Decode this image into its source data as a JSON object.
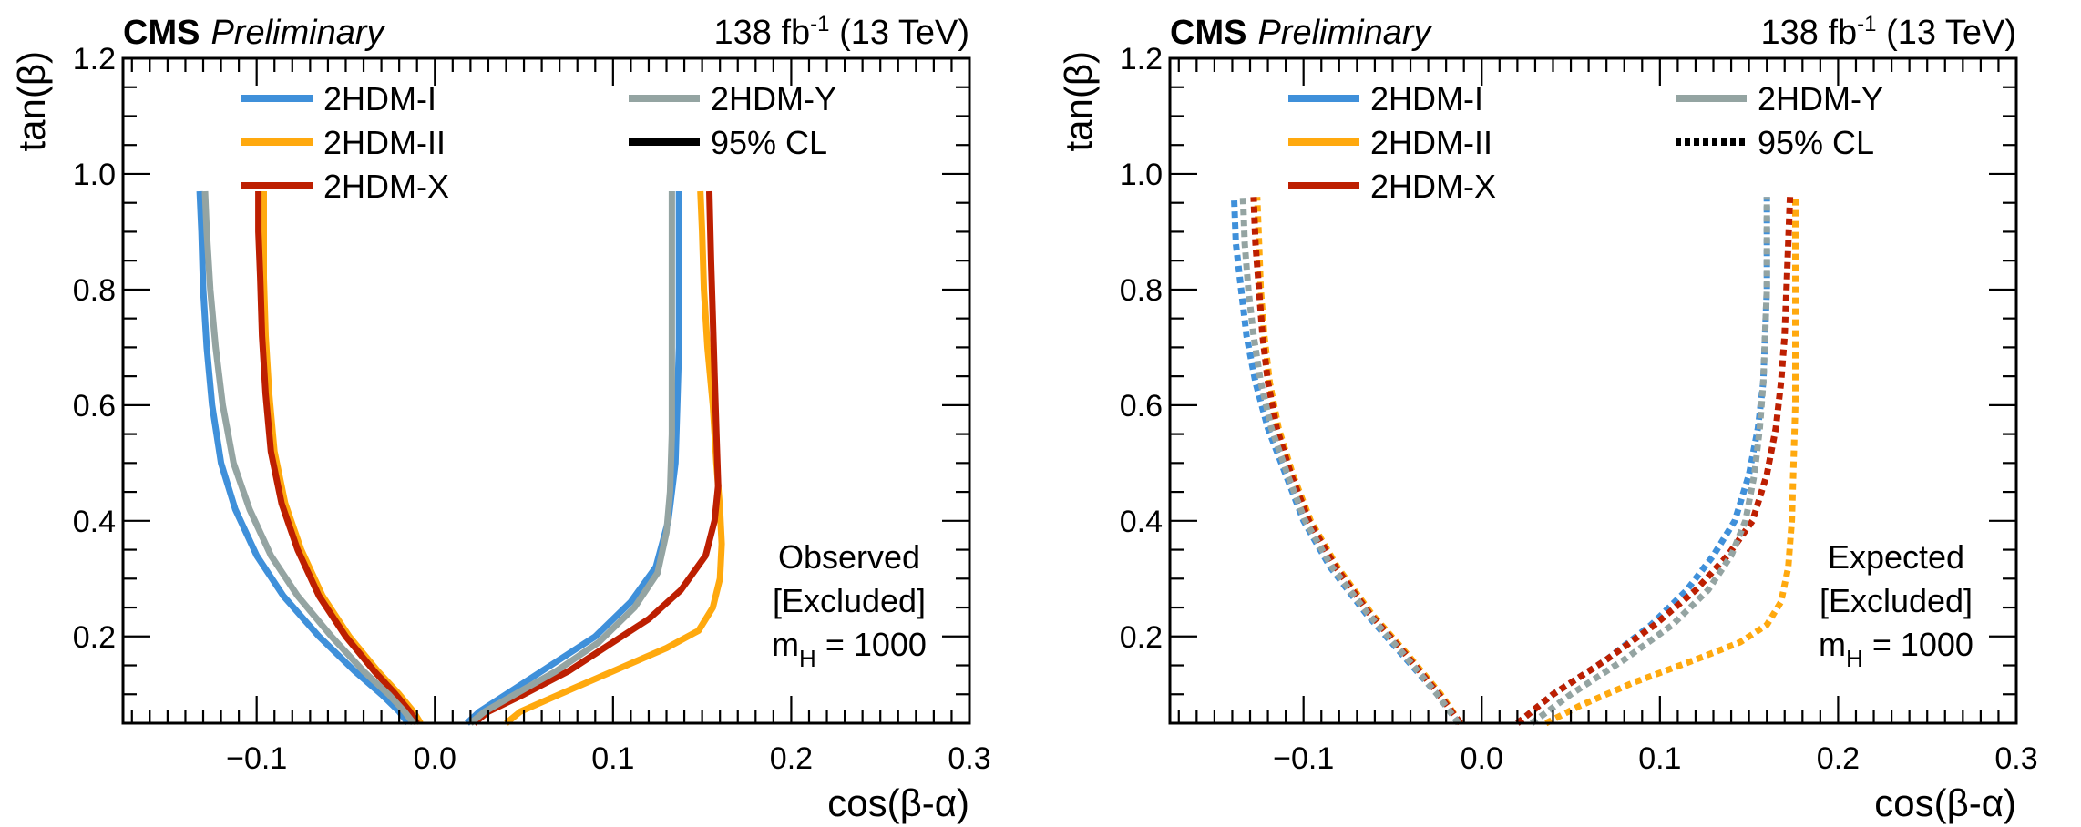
{
  "chart_data": [
    {
      "type": "line",
      "panel": "observed",
      "header": {
        "experiment": "CMS",
        "status": "Preliminary",
        "lumi": "138 fb",
        "lumi_sup": "-1",
        "energy": " (13 TeV)"
      },
      "xlabel": "cos(β-α)",
      "ylabel": "tan(β)",
      "xlim": [
        -0.175,
        0.3
      ],
      "ylim": [
        0.05,
        1.2
      ],
      "xticks": [
        -0.1,
        0.0,
        0.1,
        0.2,
        0.3
      ],
      "xtick_labels": [
        "−0.1",
        "0.0",
        "0.1",
        "0.2",
        "0.3"
      ],
      "yticks": [
        0.2,
        0.4,
        0.6,
        0.8,
        1.0,
        1.2
      ],
      "ytick_labels": [
        "0.2",
        "0.4",
        "0.6",
        "0.8",
        "1.0",
        "1.2"
      ],
      "x_minor_step": 0.01,
      "y_minor_step": 0.05,
      "grid": false,
      "line_style": "solid",
      "legend_position": "top",
      "legend": [
        {
          "label": "2HDM-I",
          "color": "#3f90da",
          "style": "solid"
        },
        {
          "label": "2HDM-II",
          "color": "#ffa90e",
          "style": "solid"
        },
        {
          "label": "2HDM-X",
          "color": "#bd1f01",
          "style": "solid"
        },
        {
          "label": "2HDM-Y",
          "color": "#94a4a2",
          "style": "solid"
        },
        {
          "label": "95% CL",
          "color": "#000000",
          "style": "solid"
        }
      ],
      "annotation": [
        "Observed",
        "[Excluded]",
        "m",
        "H",
        " = 1000"
      ],
      "series": [
        {
          "name": "2HDM-I",
          "color": "#3f90da",
          "left": [
            [
              -0.015,
              0.05
            ],
            [
              -0.02,
              0.07
            ],
            [
              -0.03,
              0.1
            ],
            [
              -0.045,
              0.14
            ],
            [
              -0.065,
              0.2
            ],
            [
              -0.085,
              0.27
            ],
            [
              -0.1,
              0.34
            ],
            [
              -0.112,
              0.42
            ],
            [
              -0.12,
              0.5
            ],
            [
              -0.125,
              0.6
            ],
            [
              -0.128,
              0.7
            ],
            [
              -0.13,
              0.8
            ],
            [
              -0.131,
              0.9
            ],
            [
              -0.132,
              0.97
            ]
          ],
          "right": [
            [
              0.018,
              0.05
            ],
            [
              0.025,
              0.07
            ],
            [
              0.04,
              0.1
            ],
            [
              0.065,
              0.15
            ],
            [
              0.09,
              0.2
            ],
            [
              0.11,
              0.26
            ],
            [
              0.124,
              0.32
            ],
            [
              0.131,
              0.4
            ],
            [
              0.135,
              0.5
            ],
            [
              0.136,
              0.6
            ],
            [
              0.137,
              0.7
            ],
            [
              0.137,
              0.8
            ],
            [
              0.137,
              0.9
            ],
            [
              0.137,
              0.97
            ]
          ]
        },
        {
          "name": "2HDM-II",
          "color": "#ffa90e",
          "left": [
            [
              -0.008,
              0.05
            ],
            [
              -0.012,
              0.07
            ],
            [
              -0.02,
              0.1
            ],
            [
              -0.032,
              0.14
            ],
            [
              -0.048,
              0.2
            ],
            [
              -0.063,
              0.27
            ],
            [
              -0.075,
              0.35
            ],
            [
              -0.084,
              0.43
            ],
            [
              -0.09,
              0.52
            ],
            [
              -0.093,
              0.62
            ],
            [
              -0.095,
              0.72
            ],
            [
              -0.096,
              0.82
            ],
            [
              -0.096,
              0.9
            ],
            [
              -0.096,
              0.97
            ]
          ],
          "right": [
            [
              0.04,
              0.05
            ],
            [
              0.048,
              0.07
            ],
            [
              0.07,
              0.1
            ],
            [
              0.1,
              0.14
            ],
            [
              0.13,
              0.18
            ],
            [
              0.148,
              0.21
            ],
            [
              0.156,
              0.25
            ],
            [
              0.16,
              0.3
            ],
            [
              0.161,
              0.36
            ],
            [
              0.16,
              0.42
            ],
            [
              0.158,
              0.5
            ],
            [
              0.156,
              0.6
            ],
            [
              0.153,
              0.7
            ],
            [
              0.151,
              0.8
            ],
            [
              0.15,
              0.9
            ],
            [
              0.149,
              0.97
            ]
          ]
        },
        {
          "name": "2HDM-X",
          "color": "#bd1f01",
          "left": [
            [
              -0.01,
              0.05
            ],
            [
              -0.014,
              0.07
            ],
            [
              -0.022,
              0.1
            ],
            [
              -0.034,
              0.14
            ],
            [
              -0.05,
              0.2
            ],
            [
              -0.065,
              0.27
            ],
            [
              -0.077,
              0.35
            ],
            [
              -0.086,
              0.43
            ],
            [
              -0.092,
              0.52
            ],
            [
              -0.095,
              0.62
            ],
            [
              -0.097,
              0.72
            ],
            [
              -0.098,
              0.82
            ],
            [
              -0.099,
              0.9
            ],
            [
              -0.099,
              0.97
            ]
          ],
          "right": [
            [
              0.022,
              0.05
            ],
            [
              0.03,
              0.07
            ],
            [
              0.05,
              0.1
            ],
            [
              0.075,
              0.14
            ],
            [
              0.1,
              0.19
            ],
            [
              0.12,
              0.23
            ],
            [
              0.138,
              0.28
            ],
            [
              0.152,
              0.34
            ],
            [
              0.157,
              0.4
            ],
            [
              0.159,
              0.46
            ],
            [
              0.158,
              0.55
            ],
            [
              0.157,
              0.65
            ],
            [
              0.156,
              0.75
            ],
            [
              0.155,
              0.85
            ],
            [
              0.154,
              0.97
            ]
          ]
        },
        {
          "name": "2HDM-Y",
          "color": "#94a4a2",
          "left": [
            [
              -0.012,
              0.05
            ],
            [
              -0.017,
              0.07
            ],
            [
              -0.026,
              0.1
            ],
            [
              -0.04,
              0.14
            ],
            [
              -0.058,
              0.2
            ],
            [
              -0.077,
              0.27
            ],
            [
              -0.092,
              0.34
            ],
            [
              -0.104,
              0.42
            ],
            [
              -0.113,
              0.5
            ],
            [
              -0.119,
              0.6
            ],
            [
              -0.123,
              0.7
            ],
            [
              -0.126,
              0.8
            ],
            [
              -0.128,
              0.9
            ],
            [
              -0.129,
              0.97
            ]
          ],
          "right": [
            [
              0.02,
              0.05
            ],
            [
              0.028,
              0.07
            ],
            [
              0.045,
              0.1
            ],
            [
              0.068,
              0.14
            ],
            [
              0.092,
              0.19
            ],
            [
              0.112,
              0.25
            ],
            [
              0.125,
              0.31
            ],
            [
              0.13,
              0.38
            ],
            [
              0.132,
              0.45
            ],
            [
              0.133,
              0.55
            ],
            [
              0.133,
              0.65
            ],
            [
              0.133,
              0.75
            ],
            [
              0.133,
              0.85
            ],
            [
              0.133,
              0.97
            ]
          ]
        }
      ]
    },
    {
      "type": "line",
      "panel": "expected",
      "header": {
        "experiment": "CMS",
        "status": "Preliminary",
        "lumi": "138 fb",
        "lumi_sup": "-1",
        "energy": " (13 TeV)"
      },
      "xlabel": "cos(β-α)",
      "ylabel": "tan(β)",
      "xlim": [
        -0.175,
        0.3
      ],
      "ylim": [
        0.05,
        1.2
      ],
      "xticks": [
        -0.1,
        0.0,
        0.1,
        0.2,
        0.3
      ],
      "xtick_labels": [
        "−0.1",
        "0.0",
        "0.1",
        "0.2",
        "0.3"
      ],
      "yticks": [
        0.2,
        0.4,
        0.6,
        0.8,
        1.0,
        1.2
      ],
      "ytick_labels": [
        "0.2",
        "0.4",
        "0.6",
        "0.8",
        "1.0",
        "1.2"
      ],
      "x_minor_step": 0.01,
      "y_minor_step": 0.05,
      "grid": false,
      "line_style": "dotted",
      "legend_position": "top",
      "legend": [
        {
          "label": "2HDM-I",
          "color": "#3f90da",
          "style": "solid"
        },
        {
          "label": "2HDM-II",
          "color": "#ffa90e",
          "style": "solid"
        },
        {
          "label": "2HDM-X",
          "color": "#bd1f01",
          "style": "solid"
        },
        {
          "label": "2HDM-Y",
          "color": "#94a4a2",
          "style": "solid"
        },
        {
          "label": "95% CL",
          "color": "#000000",
          "style": "dotted"
        }
      ],
      "annotation": [
        "Expected",
        "[Excluded]",
        "m",
        "H",
        " = 1000"
      ],
      "series": [
        {
          "name": "2HDM-I",
          "color": "#3f90da",
          "left": [
            [
              -0.013,
              0.05
            ],
            [
              -0.025,
              0.1
            ],
            [
              -0.045,
              0.17
            ],
            [
              -0.065,
              0.24
            ],
            [
              -0.085,
              0.32
            ],
            [
              -0.1,
              0.4
            ],
            [
              -0.11,
              0.48
            ],
            [
              -0.12,
              0.56
            ],
            [
              -0.127,
              0.64
            ],
            [
              -0.132,
              0.72
            ],
            [
              -0.135,
              0.8
            ],
            [
              -0.138,
              0.88
            ],
            [
              -0.139,
              0.96
            ]
          ],
          "right": [
            [
              0.02,
              0.05
            ],
            [
              0.04,
              0.1
            ],
            [
              0.07,
              0.16
            ],
            [
              0.095,
              0.22
            ],
            [
              0.115,
              0.28
            ],
            [
              0.13,
              0.34
            ],
            [
              0.142,
              0.4
            ],
            [
              0.15,
              0.48
            ],
            [
              0.155,
              0.56
            ],
            [
              0.158,
              0.64
            ],
            [
              0.159,
              0.72
            ],
            [
              0.16,
              0.8
            ],
            [
              0.16,
              0.88
            ],
            [
              0.16,
              0.96
            ]
          ]
        },
        {
          "name": "2HDM-II",
          "color": "#ffa90e",
          "left": [
            [
              -0.012,
              0.05
            ],
            [
              -0.023,
              0.1
            ],
            [
              -0.042,
              0.17
            ],
            [
              -0.062,
              0.24
            ],
            [
              -0.081,
              0.32
            ],
            [
              -0.096,
              0.4
            ],
            [
              -0.106,
              0.48
            ],
            [
              -0.114,
              0.56
            ],
            [
              -0.119,
              0.64
            ],
            [
              -0.122,
              0.72
            ],
            [
              -0.124,
              0.8
            ],
            [
              -0.125,
              0.88
            ],
            [
              -0.126,
              0.96
            ]
          ],
          "right": [
            [
              0.036,
              0.05
            ],
            [
              0.055,
              0.08
            ],
            [
              0.085,
              0.12
            ],
            [
              0.12,
              0.16
            ],
            [
              0.145,
              0.19
            ],
            [
              0.16,
              0.22
            ],
            [
              0.168,
              0.26
            ],
            [
              0.172,
              0.32
            ],
            [
              0.174,
              0.4
            ],
            [
              0.175,
              0.5
            ],
            [
              0.176,
              0.6
            ],
            [
              0.176,
              0.7
            ],
            [
              0.176,
              0.8
            ],
            [
              0.176,
              0.9
            ],
            [
              0.176,
              0.96
            ]
          ]
        },
        {
          "name": "2HDM-X",
          "color": "#bd1f01",
          "left": [
            [
              -0.012,
              0.05
            ],
            [
              -0.024,
              0.1
            ],
            [
              -0.043,
              0.17
            ],
            [
              -0.063,
              0.24
            ],
            [
              -0.082,
              0.32
            ],
            [
              -0.097,
              0.4
            ],
            [
              -0.107,
              0.48
            ],
            [
              -0.115,
              0.56
            ],
            [
              -0.12,
              0.64
            ],
            [
              -0.123,
              0.72
            ],
            [
              -0.125,
              0.8
            ],
            [
              -0.127,
              0.88
            ],
            [
              -0.128,
              0.96
            ]
          ],
          "right": [
            [
              0.02,
              0.05
            ],
            [
              0.04,
              0.1
            ],
            [
              0.07,
              0.16
            ],
            [
              0.097,
              0.22
            ],
            [
              0.12,
              0.28
            ],
            [
              0.138,
              0.34
            ],
            [
              0.152,
              0.4
            ],
            [
              0.16,
              0.48
            ],
            [
              0.165,
              0.56
            ],
            [
              0.168,
              0.64
            ],
            [
              0.17,
              0.72
            ],
            [
              0.171,
              0.8
            ],
            [
              0.172,
              0.88
            ],
            [
              0.173,
              0.96
            ]
          ]
        },
        {
          "name": "2HDM-Y",
          "color": "#94a4a2",
          "left": [
            [
              -0.013,
              0.05
            ],
            [
              -0.025,
              0.1
            ],
            [
              -0.044,
              0.17
            ],
            [
              -0.064,
              0.24
            ],
            [
              -0.084,
              0.32
            ],
            [
              -0.099,
              0.4
            ],
            [
              -0.109,
              0.48
            ],
            [
              -0.118,
              0.56
            ],
            [
              -0.124,
              0.64
            ],
            [
              -0.128,
              0.72
            ],
            [
              -0.131,
              0.8
            ],
            [
              -0.133,
              0.88
            ],
            [
              -0.134,
              0.96
            ]
          ],
          "right": [
            [
              0.028,
              0.05
            ],
            [
              0.05,
              0.1
            ],
            [
              0.08,
              0.16
            ],
            [
              0.107,
              0.22
            ],
            [
              0.127,
              0.28
            ],
            [
              0.14,
              0.34
            ],
            [
              0.148,
              0.4
            ],
            [
              0.153,
              0.48
            ],
            [
              0.156,
              0.56
            ],
            [
              0.158,
              0.64
            ],
            [
              0.159,
              0.72
            ],
            [
              0.16,
              0.8
            ],
            [
              0.16,
              0.88
            ],
            [
              0.16,
              0.96
            ]
          ]
        }
      ]
    }
  ]
}
